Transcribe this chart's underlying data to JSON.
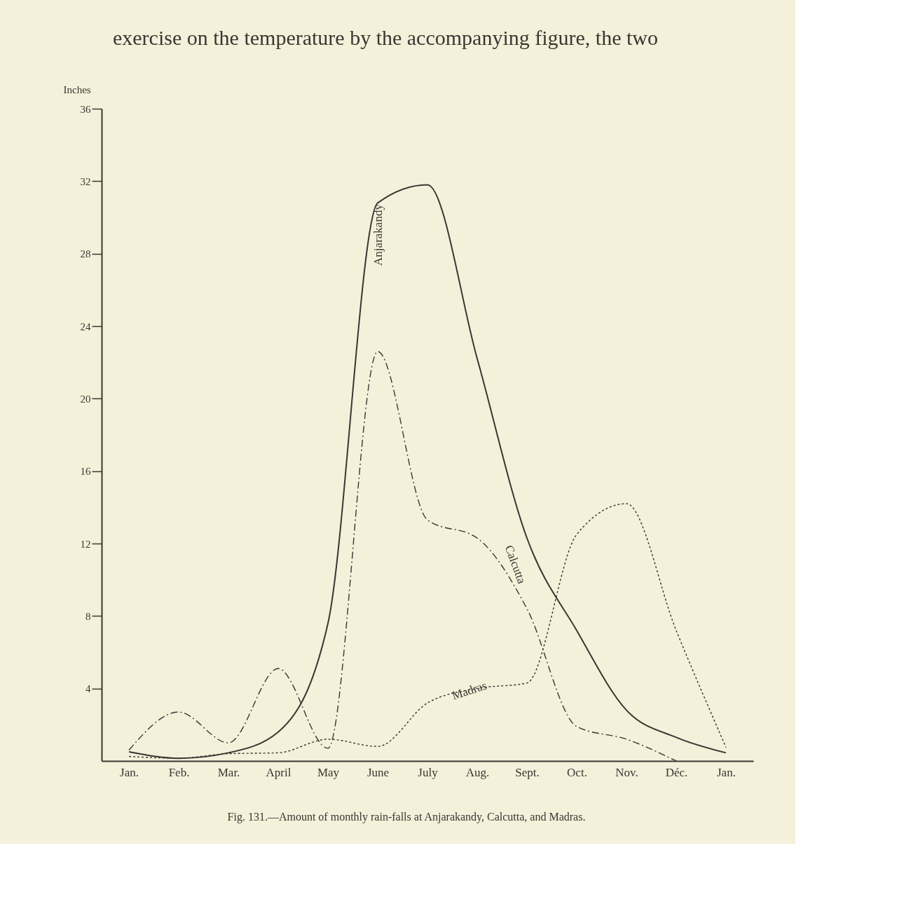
{
  "chart_data": {
    "type": "line",
    "ylabel": "Inches",
    "categories": [
      "Jan.",
      "Feb.",
      "Mar.",
      "April",
      "May",
      "June",
      "July",
      "Aug.",
      "Sept.",
      "Oct.",
      "Nov.",
      "Déc.",
      "Jan."
    ],
    "series": [
      {
        "name": "Anjarakandy",
        "color": "#3b3631",
        "line_style": "solid",
        "values": [
          0.5,
          0.15,
          0.45,
          1.6,
          7.6,
          30.8,
          31.8,
          22.2,
          12.3,
          7.2,
          2.8,
          1.3,
          0.45
        ]
      },
      {
        "name": "Calcutta",
        "color": "#3b3631",
        "line_style": "dashed",
        "values": [
          0.6,
          2.7,
          1.0,
          5.1,
          0.7,
          22.6,
          13.3,
          12.3,
          8.4,
          1.9,
          1.2,
          0,
          null
        ]
      },
      {
        "name": "Madras",
        "color": "#3b3631",
        "line_style": "dotted",
        "values": [
          0.25,
          0.15,
          0.4,
          0.45,
          1.2,
          0.8,
          3.2,
          4.0,
          4.3,
          12.5,
          14.2,
          7.2,
          0.75
        ]
      }
    ],
    "ylim": [
      0,
      36
    ],
    "yticks": [
      4,
      8,
      12,
      16,
      20,
      24,
      28,
      32,
      36
    ],
    "grid": false,
    "legend": false,
    "marker": "none",
    "annotations": [
      "exercise on the temperature by the accompanying figure, the two",
      "Fig. 131.—Amount of monthly rain-falls at Anjarakandy, Calcutta, and Madras."
    ]
  }
}
